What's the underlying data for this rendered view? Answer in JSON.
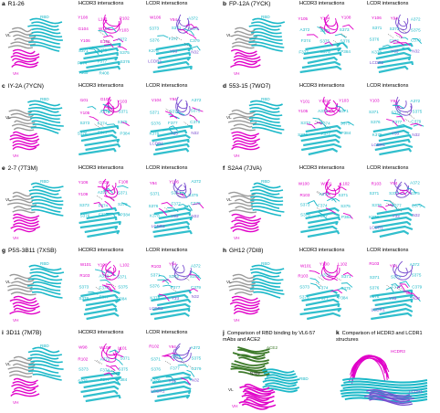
{
  "colors": {
    "rbd": "#1bb8c8",
    "heavy": "#e000c8",
    "light": "#9a9a9a",
    "lcdr": "#7a4fd0",
    "ace2": "#3d7a2a"
  },
  "common": {
    "hcdr3_title": "HCDR3 interactions",
    "lcdr_title": "LCDR interactions",
    "rbd": "RBD",
    "vl": "VL",
    "vh": "VH",
    "hcdr3": "HCDR3",
    "lcdr1": "LCDR1"
  },
  "panels": [
    {
      "letter": "a",
      "name": "R1-26",
      "h_labels": [
        "Y108",
        "L101",
        "P102",
        "G104",
        "W104",
        "Y103",
        "Y106",
        "E106",
        "A372",
        "S371",
        "S373",
        "S375",
        "F374",
        "F377",
        "S376",
        "Y369",
        "R408"
      ],
      "l_labels": [
        "W106",
        "Y94",
        "A372",
        "S373",
        "S371",
        "S375",
        "S376",
        "F377",
        "C379",
        "K378",
        "Y33",
        "N32",
        "LCDR1"
      ]
    },
    {
      "letter": "b",
      "name": "FP-12A (7YCK)",
      "h_labels": [
        "Y105",
        "Y104",
        "Y108",
        "A372",
        "S371",
        "S373",
        "F374",
        "S375",
        "S376",
        "F377",
        "C379",
        "P384"
      ],
      "l_labels": [
        "Y106",
        "Y94",
        "A372",
        "S371",
        "S373",
        "S375",
        "S376",
        "F377",
        "C379",
        "K378",
        "Y33",
        "N32",
        "LCDR1"
      ]
    },
    {
      "letter": "c",
      "name": "IY-2A (7YCN)",
      "h_labels": [
        "I101",
        "G102",
        "Y103",
        "Y105",
        "A372",
        "S371",
        "S373",
        "F374",
        "S375",
        "S376",
        "F377",
        "P384"
      ],
      "l_labels": [
        "V104",
        "Y94",
        "A372",
        "S371",
        "S373",
        "S375",
        "S376",
        "F377",
        "C379",
        "K378",
        "Y33",
        "N32",
        "LCDR1"
      ]
    },
    {
      "letter": "d",
      "name": "553-15 (7WO7)",
      "h_labels": [
        "Y101",
        "Y102",
        "Y103",
        "Y105",
        "A372",
        "S371",
        "S373",
        "F374",
        "S375",
        "S376",
        "F377",
        "P384"
      ],
      "l_labels": [
        "Y103",
        "Y94",
        "A372",
        "S371",
        "S373",
        "S375",
        "S376",
        "F377",
        "C379",
        "K378",
        "Y33",
        "N32",
        "LCDR1"
      ]
    },
    {
      "letter": "e",
      "name": "2-7 (7T3M)",
      "h_labels": [
        "Y106",
        "G108",
        "F108",
        "Y109",
        "A372",
        "S371",
        "S373",
        "F374",
        "S375",
        "S376",
        "F377",
        "P384"
      ],
      "l_labels": [
        "Y94",
        "Y106",
        "A372",
        "S371",
        "S373",
        "S375",
        "S376",
        "F377",
        "C379",
        "K378",
        "Y33",
        "N32",
        "LCDR1"
      ]
    },
    {
      "letter": "f",
      "name": "S2A4 (7JVA)",
      "h_labels": [
        "W100",
        "W101",
        "L102",
        "R103",
        "A372",
        "S371",
        "S373",
        "F374",
        "S375",
        "S376",
        "F377",
        "P384"
      ],
      "l_labels": [
        "R103",
        "Y94",
        "A372",
        "S371",
        "S373",
        "S375",
        "S376",
        "F377",
        "C379",
        "K378",
        "Y33",
        "N32",
        "LCDR1"
      ]
    },
    {
      "letter": "g",
      "name": "P5S-3B11 (7XSB)",
      "h_labels": [
        "W101",
        "Y100",
        "L102",
        "R103",
        "A372",
        "S371",
        "S373",
        "F374",
        "S375",
        "S376",
        "F377",
        "P384"
      ],
      "l_labels": [
        "R103",
        "Y94",
        "A372",
        "S371",
        "S373",
        "S375",
        "S376",
        "F377",
        "C379",
        "K378",
        "Y33",
        "N32",
        "LCDR1"
      ]
    },
    {
      "letter": "h",
      "name": "GH12 (7DI8)",
      "h_labels": [
        "W101",
        "Y100",
        "L102",
        "R103",
        "A372",
        "S371",
        "S373",
        "F374",
        "S375",
        "S376",
        "F377",
        "P384"
      ],
      "l_labels": [
        "R103",
        "Y94",
        "A372",
        "S371",
        "S373",
        "S375",
        "S376",
        "F377",
        "C379",
        "K378",
        "Y33",
        "N32",
        "LCDR1"
      ]
    },
    {
      "letter": "i",
      "name": "3D11 (7M7B)",
      "h_labels": [
        "W98",
        "W100",
        "L101",
        "R102",
        "A372",
        "S371",
        "S373",
        "F374",
        "S375",
        "S376",
        "F377",
        "P384"
      ],
      "l_labels": [
        "R102",
        "Y94",
        "A372",
        "S371",
        "S373",
        "S375",
        "S376",
        "F377",
        "C379",
        "K378",
        "Y33",
        "N32",
        "LCDR1"
      ]
    }
  ],
  "panel_j": {
    "letter": "j",
    "title": "Comparison of RBD binding by VL6-57 mAbs and ACE2",
    "labels": {
      "ace2": "ACE2",
      "rbd": "RBD",
      "vh": "VH",
      "vl": "VL",
      "n322": "N322"
    }
  },
  "panel_k": {
    "letter": "k",
    "title": "Comparison of HCDR3 and LCDR1 structures",
    "labels": {
      "hcdr3": "HCDR3",
      "lcdr1": "LCDR1"
    }
  }
}
